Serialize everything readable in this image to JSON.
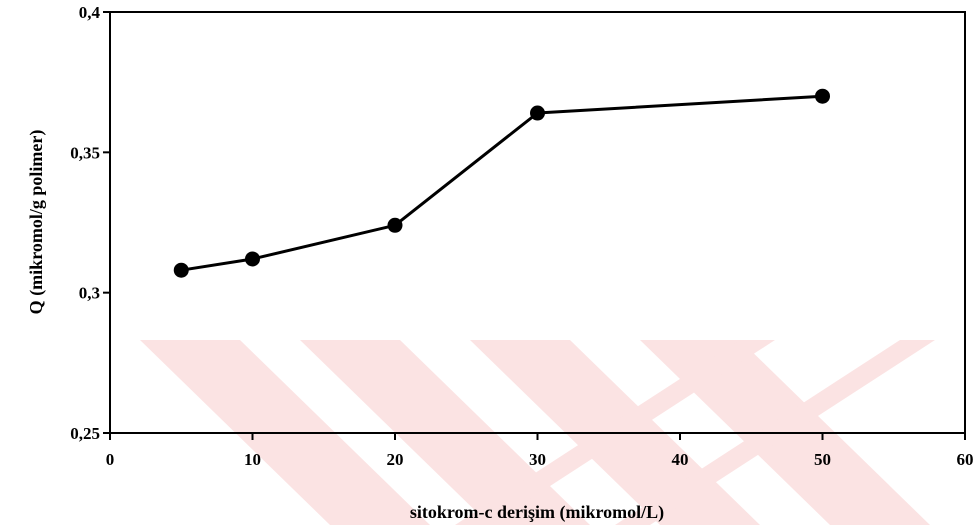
{
  "chart_data": {
    "type": "line",
    "title": "",
    "xlabel": "sitokrom-c derişim (mikromol/L)",
    "ylabel": "Q (mikromol/g polimer)",
    "xlim": [
      0,
      60
    ],
    "ylim": [
      0.25,
      0.4
    ],
    "x_ticks": [
      "0",
      "10",
      "20",
      "30",
      "40",
      "50",
      "60"
    ],
    "y_ticks": [
      "0,25",
      "0,3",
      "0,35",
      "0,4"
    ],
    "x": [
      5,
      10,
      20,
      30,
      50
    ],
    "values": [
      0.308,
      0.312,
      0.324,
      0.364,
      0.37
    ],
    "grid": false,
    "legend": "none",
    "line_color": "#000000",
    "marker": "filled-circle",
    "watermark_color": "#fbe3e3"
  }
}
